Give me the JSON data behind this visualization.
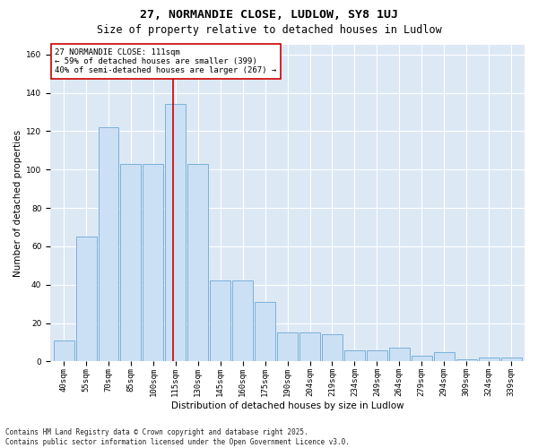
{
  "title1": "27, NORMANDIE CLOSE, LUDLOW, SY8 1UJ",
  "title2": "Size of property relative to detached houses in Ludlow",
  "xlabel": "Distribution of detached houses by size in Ludlow",
  "ylabel": "Number of detached properties",
  "categories": [
    "40sqm",
    "55sqm",
    "70sqm",
    "85sqm",
    "100sqm",
    "115sqm",
    "130sqm",
    "145sqm",
    "160sqm",
    "175sqm",
    "190sqm",
    "204sqm",
    "219sqm",
    "234sqm",
    "249sqm",
    "264sqm",
    "279sqm",
    "294sqm",
    "309sqm",
    "324sqm",
    "339sqm"
  ],
  "values": [
    11,
    65,
    122,
    103,
    103,
    134,
    103,
    42,
    42,
    31,
    15,
    15,
    14,
    6,
    6,
    7,
    3,
    5,
    1,
    2,
    2
  ],
  "bar_color": "#cce0f5",
  "bar_edge_color": "#7ab0d8",
  "vline_x_index": 5,
  "vline_color": "#cc0000",
  "annotation_text": "27 NORMANDIE CLOSE: 111sqm\n← 59% of detached houses are smaller (399)\n40% of semi-detached houses are larger (267) →",
  "annotation_box_color": "#ffffff",
  "annotation_box_edge": "#cc0000",
  "ylim": [
    0,
    165
  ],
  "yticks": [
    0,
    20,
    40,
    60,
    80,
    100,
    120,
    140,
    160
  ],
  "background_color": "#dde8f5",
  "plot_bg_color": "#dde8f5",
  "footer": "Contains HM Land Registry data © Crown copyright and database right 2025.\nContains public sector information licensed under the Open Government Licence v3.0.",
  "title_fontsize": 9.5,
  "subtitle_fontsize": 8.5,
  "axis_label_fontsize": 7.5,
  "tick_fontsize": 6.5,
  "annotation_fontsize": 6.5,
  "footer_fontsize": 5.5
}
